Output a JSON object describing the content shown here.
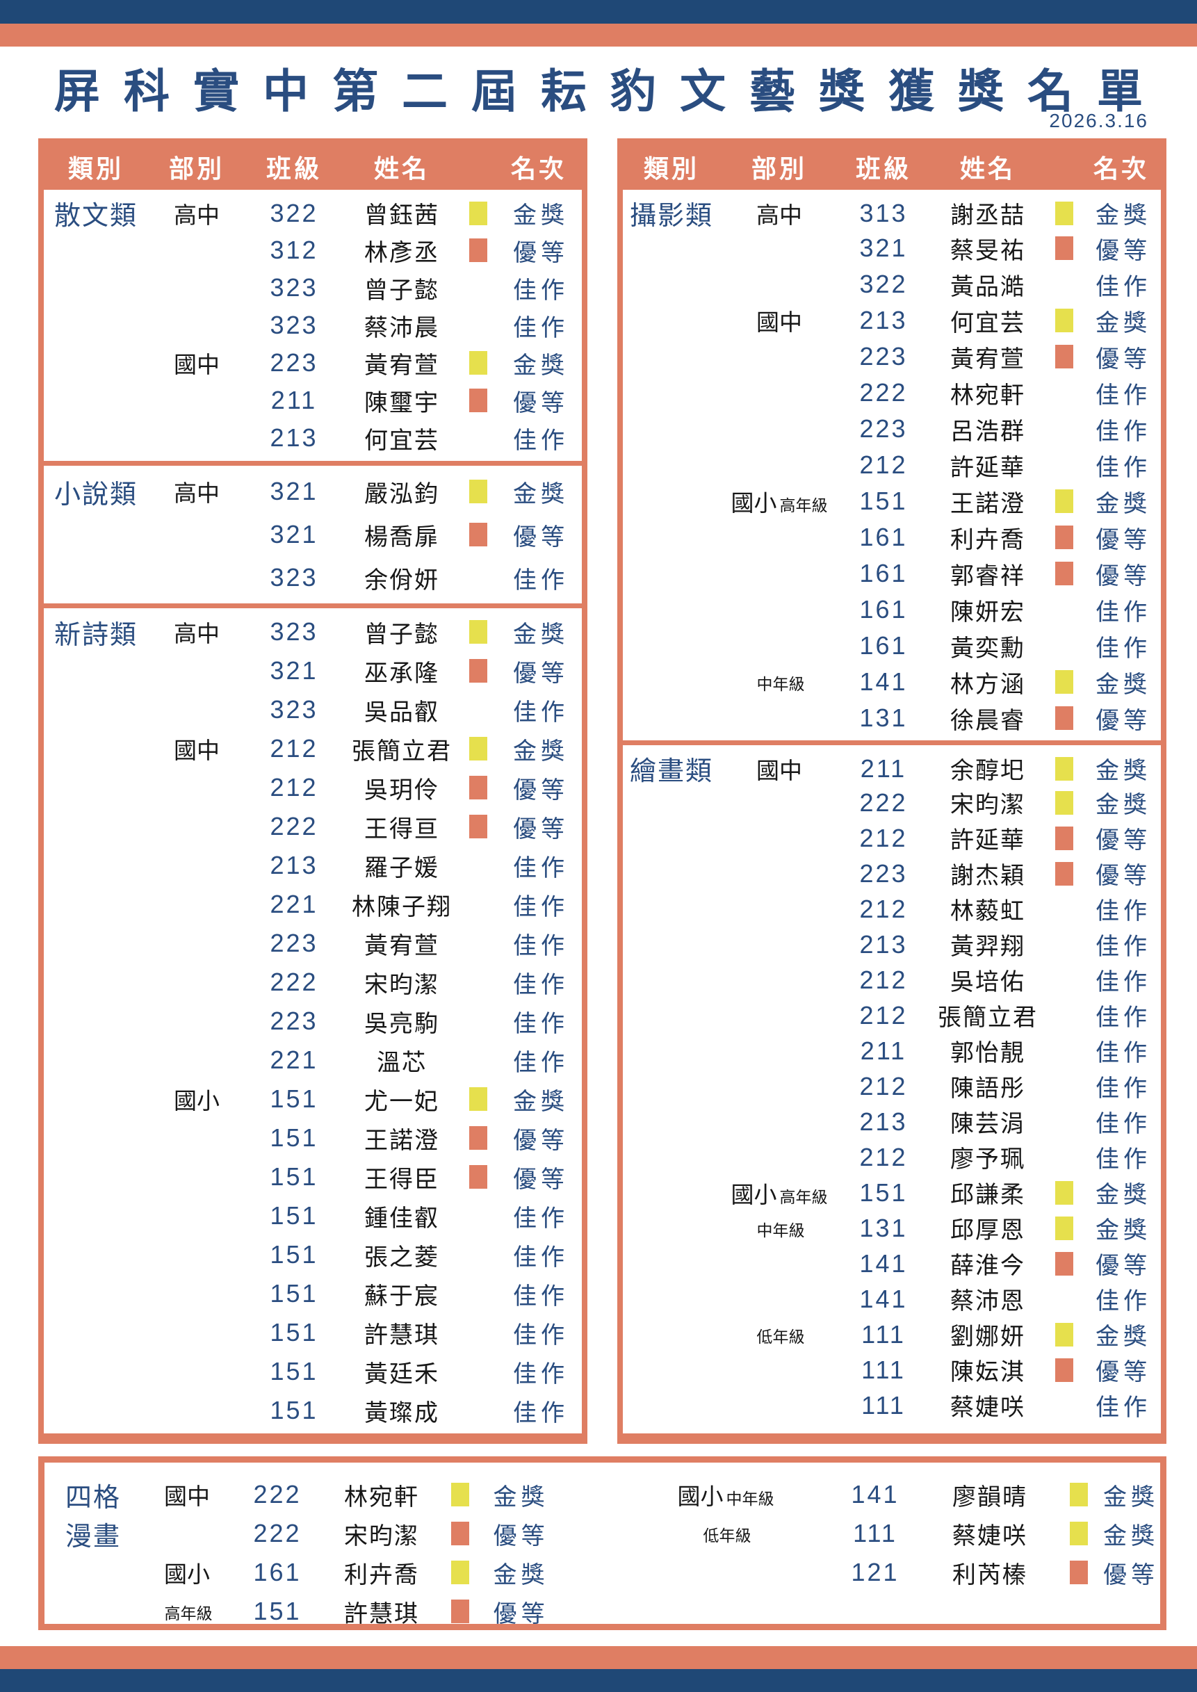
{
  "title": "屏科實中第二屆耘豹文藝獎獲獎名單",
  "date": "2026.3.16",
  "table_headers": [
    "類別",
    "部別",
    "班級",
    "姓名",
    "名次"
  ],
  "rank_labels": {
    "gold": "金獎",
    "excellent": "優等",
    "honorable": "佳作"
  },
  "colors": {
    "navy_bar": "#1F4876",
    "salmon": "#DF7E63",
    "gold_square": "#E6E04D",
    "navy_text": "#2A4D80",
    "dark_text": "#171717"
  },
  "left_sections": [
    {
      "category": "散文類",
      "rows": [
        {
          "division": "高中",
          "cls": "322",
          "name": "曾鈺茜",
          "marker": "gold",
          "rank": "金獎"
        },
        {
          "cls": "312",
          "name": "林彥丞",
          "marker": "excellent",
          "rank": "優等"
        },
        {
          "cls": "323",
          "name": "曾子懿",
          "marker": "none",
          "rank": "佳作"
        },
        {
          "cls": "323",
          "name": "蔡沛晨",
          "marker": "none",
          "rank": "佳作"
        },
        {
          "division": "國中",
          "cls": "223",
          "name": "黃宥萱",
          "marker": "gold",
          "rank": "金獎"
        },
        {
          "cls": "211",
          "name": "陳璽宇",
          "marker": "excellent",
          "rank": "優等"
        },
        {
          "cls": "213",
          "name": "何宜芸",
          "marker": "none",
          "rank": "佳作"
        }
      ]
    },
    {
      "category": "小說類",
      "rows": [
        {
          "division": "高中",
          "cls": "321",
          "name": "嚴泓鈞",
          "marker": "gold",
          "rank": "金獎"
        },
        {
          "cls": "321",
          "name": "楊喬扉",
          "marker": "excellent",
          "rank": "優等"
        },
        {
          "cls": "323",
          "name": "余佾妍",
          "marker": "none",
          "rank": "佳作"
        }
      ]
    },
    {
      "category": "新詩類",
      "rows": [
        {
          "division": "高中",
          "cls": "323",
          "name": "曾子懿",
          "marker": "gold",
          "rank": "金獎"
        },
        {
          "cls": "321",
          "name": "巫承隆",
          "marker": "excellent",
          "rank": "優等"
        },
        {
          "cls": "323",
          "name": "吳品叡",
          "marker": "none",
          "rank": "佳作"
        },
        {
          "division": "國中",
          "cls": "212",
          "name": "張簡立君",
          "marker": "gold",
          "rank": "金獎"
        },
        {
          "cls": "212",
          "name": "吳玥伶",
          "marker": "excellent",
          "rank": "優等"
        },
        {
          "cls": "222",
          "name": "王得亘",
          "marker": "excellent",
          "rank": "優等"
        },
        {
          "cls": "213",
          "name": "羅子媛",
          "marker": "none",
          "rank": "佳作"
        },
        {
          "cls": "221",
          "name": "林陳子翔",
          "marker": "none",
          "rank": "佳作"
        },
        {
          "cls": "223",
          "name": "黃宥萱",
          "marker": "none",
          "rank": "佳作"
        },
        {
          "cls": "222",
          "name": "宋昀潔",
          "marker": "none",
          "rank": "佳作"
        },
        {
          "cls": "223",
          "name": "吳亮駒",
          "marker": "none",
          "rank": "佳作"
        },
        {
          "cls": "221",
          "name": "溫芯",
          "marker": "none",
          "rank": "佳作"
        },
        {
          "division": "國小",
          "cls": "151",
          "name": "尤一妃",
          "marker": "gold",
          "rank": "金獎"
        },
        {
          "cls": "151",
          "name": "王諾澄",
          "marker": "excellent",
          "rank": "優等"
        },
        {
          "cls": "151",
          "name": "王得臣",
          "marker": "excellent",
          "rank": "優等"
        },
        {
          "cls": "151",
          "name": "鍾佳叡",
          "marker": "none",
          "rank": "佳作"
        },
        {
          "cls": "151",
          "name": "張之菱",
          "marker": "none",
          "rank": "佳作"
        },
        {
          "cls": "151",
          "name": "蘇于宸",
          "marker": "none",
          "rank": "佳作"
        },
        {
          "cls": "151",
          "name": "許慧琪",
          "marker": "none",
          "rank": "佳作"
        },
        {
          "cls": "151",
          "name": "黃廷禾",
          "marker": "none",
          "rank": "佳作"
        },
        {
          "cls": "151",
          "name": "黃璨成",
          "marker": "none",
          "rank": "佳作"
        }
      ]
    }
  ],
  "right_sections": [
    {
      "category": "攝影類",
      "rows": [
        {
          "division": "高中",
          "cls": "313",
          "name": "謝丞喆",
          "marker": "gold",
          "rank": "金獎"
        },
        {
          "cls": "321",
          "name": "蔡旻祐",
          "marker": "excellent",
          "rank": "優等"
        },
        {
          "cls": "322",
          "name": "黃品澔",
          "marker": "none",
          "rank": "佳作"
        },
        {
          "division": "國中",
          "cls": "213",
          "name": "何宜芸",
          "marker": "gold",
          "rank": "金獎"
        },
        {
          "cls": "223",
          "name": "黃宥萱",
          "marker": "excellent",
          "rank": "優等"
        },
        {
          "cls": "222",
          "name": "林宛軒",
          "marker": "none",
          "rank": "佳作"
        },
        {
          "cls": "223",
          "name": "呂浩群",
          "marker": "none",
          "rank": "佳作"
        },
        {
          "cls": "212",
          "name": "許延華",
          "marker": "none",
          "rank": "佳作"
        },
        {
          "division": "國小",
          "grade": "高年級",
          "cls": "151",
          "name": "王諾澄",
          "marker": "gold",
          "rank": "金獎"
        },
        {
          "cls": "161",
          "name": "利卉喬",
          "marker": "excellent",
          "rank": "優等"
        },
        {
          "cls": "161",
          "name": "郭睿祥",
          "marker": "excellent",
          "rank": "優等"
        },
        {
          "cls": "161",
          "name": "陳妍宏",
          "marker": "none",
          "rank": "佳作"
        },
        {
          "cls": "161",
          "name": "黃奕勳",
          "marker": "none",
          "rank": "佳作"
        },
        {
          "grade": "中年級",
          "cls": "141",
          "name": "林方涵",
          "marker": "gold",
          "rank": "金獎"
        },
        {
          "cls": "131",
          "name": "徐晨睿",
          "marker": "excellent",
          "rank": "優等"
        }
      ]
    },
    {
      "category": "繪畫類",
      "rows": [
        {
          "division": "國中",
          "cls": "211",
          "name": "余醇圯",
          "marker": "gold",
          "rank": "金獎"
        },
        {
          "cls": "222",
          "name": "宋昀潔",
          "marker": "gold",
          "rank": "金獎"
        },
        {
          "cls": "212",
          "name": "許延華",
          "marker": "excellent",
          "rank": "優等"
        },
        {
          "cls": "223",
          "name": "謝杰穎",
          "marker": "excellent",
          "rank": "優等"
        },
        {
          "cls": "212",
          "name": "林藙虹",
          "marker": "none",
          "rank": "佳作"
        },
        {
          "cls": "213",
          "name": "黃羿翔",
          "marker": "none",
          "rank": "佳作"
        },
        {
          "cls": "212",
          "name": "吳培佑",
          "marker": "none",
          "rank": "佳作"
        },
        {
          "cls": "212",
          "name": "張簡立君",
          "marker": "none",
          "rank": "佳作"
        },
        {
          "cls": "211",
          "name": "郭怡靚",
          "marker": "none",
          "rank": "佳作"
        },
        {
          "cls": "212",
          "name": "陳語彤",
          "marker": "none",
          "rank": "佳作"
        },
        {
          "cls": "213",
          "name": "陳芸涓",
          "marker": "none",
          "rank": "佳作"
        },
        {
          "cls": "212",
          "name": "廖予珮",
          "marker": "none",
          "rank": "佳作"
        },
        {
          "division": "國小",
          "grade": "高年級",
          "cls": "151",
          "name": "邱謙柔",
          "marker": "gold",
          "rank": "金獎"
        },
        {
          "grade": "中年級",
          "cls": "131",
          "name": "邱厚恩",
          "marker": "gold",
          "rank": "金獎"
        },
        {
          "cls": "141",
          "name": "薛淮今",
          "marker": "excellent",
          "rank": "優等"
        },
        {
          "cls": "141",
          "name": "蔡沛恩",
          "marker": "none",
          "rank": "佳作"
        },
        {
          "grade": "低年級",
          "cls": "111",
          "name": "劉娜妍",
          "marker": "gold",
          "rank": "金獎"
        },
        {
          "cls": "111",
          "name": "陳妘淇",
          "marker": "excellent",
          "rank": "優等"
        },
        {
          "cls": "111",
          "name": "蔡婕咲",
          "marker": "none",
          "rank": "佳作"
        }
      ]
    }
  ],
  "bottom_left_rows": [
    {
      "cat": "四格",
      "division": "國中",
      "cls": "222",
      "name": "林宛軒",
      "marker": "gold",
      "rank": "金獎"
    },
    {
      "cat": "漫畫",
      "cls": "222",
      "name": "宋昀潔",
      "marker": "excellent",
      "rank": "優等"
    },
    {
      "division": "國小",
      "cls": "161",
      "name": "利卉喬",
      "marker": "gold",
      "rank": "金獎"
    },
    {
      "grade": "高年級",
      "cls": "151",
      "name": "許慧琪",
      "marker": "excellent",
      "rank": "優等"
    }
  ],
  "bottom_right_rows": [
    {
      "division": "國小",
      "grade": "中年級",
      "cls": "141",
      "name": "廖韻晴",
      "marker": "gold",
      "rank": "金獎"
    },
    {
      "grade": "低年級",
      "cls": "111",
      "name": "蔡婕咲",
      "marker": "gold",
      "rank": "金獎"
    },
    {
      "cls": "121",
      "name": "利芮榛",
      "marker": "excellent",
      "rank": "優等"
    }
  ]
}
